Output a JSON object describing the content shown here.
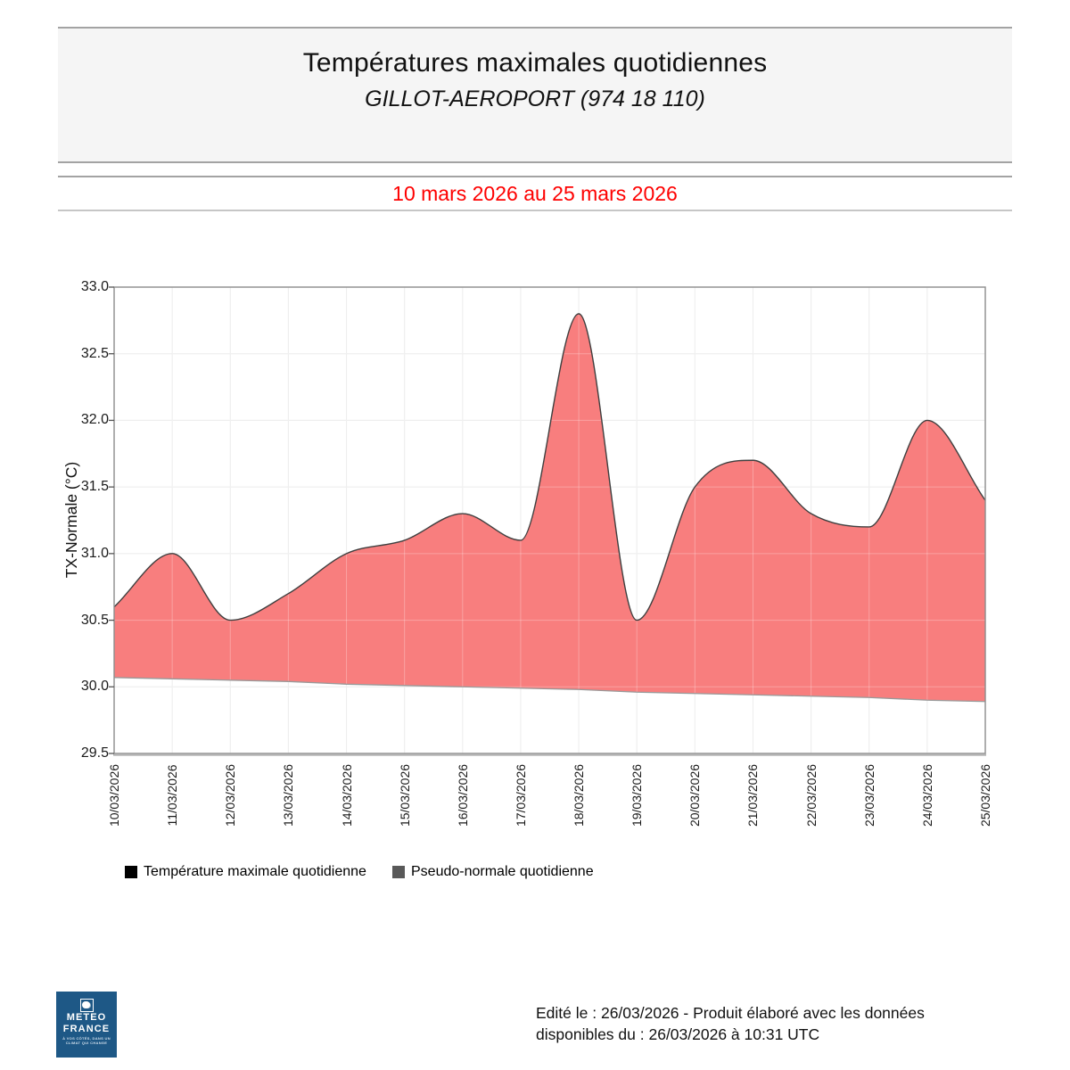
{
  "header": {
    "title": "Températures maximales quotidiennes",
    "subtitle": "GILLOT-AEROPORT (974 18 110)"
  },
  "period": {
    "label": "10 mars 2026 au 25 mars 2026"
  },
  "chart_data": {
    "type": "area",
    "x": [
      "10/03/2026",
      "11/03/2026",
      "12/03/2026",
      "13/03/2026",
      "14/03/2026",
      "15/03/2026",
      "16/03/2026",
      "17/03/2026",
      "18/03/2026",
      "19/03/2026",
      "20/03/2026",
      "21/03/2026",
      "22/03/2026",
      "23/03/2026",
      "24/03/2026",
      "25/03/2026"
    ],
    "series": [
      {
        "name": "Température maximale quotidienne",
        "values": [
          30.6,
          31.0,
          30.5,
          30.7,
          31.0,
          31.1,
          31.3,
          31.1,
          32.8,
          30.5,
          31.5,
          31.7,
          31.3,
          31.2,
          32.0,
          31.4
        ],
        "marker_color": "#000000"
      },
      {
        "name": "Pseudo-normale quotidienne",
        "values": [
          30.07,
          30.06,
          30.05,
          30.04,
          30.02,
          30.01,
          30.0,
          29.99,
          29.98,
          29.96,
          29.95,
          29.94,
          29.93,
          29.92,
          29.9,
          29.89
        ],
        "marker_color": "#595959"
      }
    ],
    "ylabel": "TX-Normale (°C)",
    "xlabel": "",
    "ylim": [
      29.5,
      33.0
    ],
    "ytick_step": 0.5,
    "grid": true,
    "legend_position": "bottom-left",
    "fill_between_series": true
  },
  "footer": {
    "line1": "Edité le : 26/03/2026 - Produit élaboré avec les données",
    "line2": "disponibles du : 26/03/2026 à 10:31 UTC"
  },
  "logo": {
    "word1": "METEO",
    "word2": "FRANCE",
    "tagline1": "À VOS CÔTÉS, DANS UN",
    "tagline2": "CLIMAT QUI CHANGE"
  },
  "colors": {
    "accent_red": "#fe0000",
    "area_fill": "#f87e7e",
    "curve_stroke": "#3f3f3f",
    "baseline_stroke": "#999999",
    "grid_line": "#e7e7e7",
    "frame": "#8c8c8c",
    "header_bg": "#f5f5f5",
    "logo_blue": "#1e5886"
  }
}
